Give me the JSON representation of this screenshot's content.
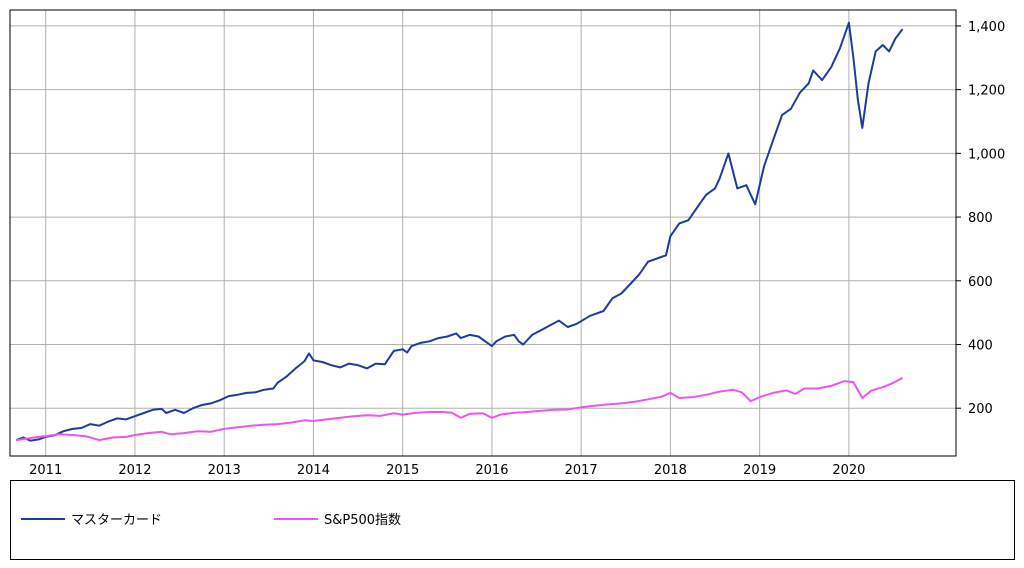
{
  "chart_data": {
    "type": "line",
    "title": "",
    "xlabel": "",
    "ylabel": "",
    "x_ticks": [
      "2011",
      "2012",
      "2013",
      "2014",
      "2015",
      "2016",
      "2017",
      "2018",
      "2019",
      "2020"
    ],
    "y_ticks": [
      "200",
      "400",
      "600",
      "800",
      "1,000",
      "1,200",
      "1,400"
    ],
    "xlim": [
      2010.6,
      2021.2
    ],
    "ylim": [
      50,
      1450
    ],
    "y_axis_side": "right",
    "grid": true,
    "legend_position": "bottom",
    "series": [
      {
        "name": "マスターカード",
        "color": "#1f3c9c",
        "points": [
          [
            2010.67,
            100
          ],
          [
            2010.75,
            108
          ],
          [
            2010.83,
            98
          ],
          [
            2010.92,
            102
          ],
          [
            2011.0,
            110
          ],
          [
            2011.1,
            115
          ],
          [
            2011.2,
            128
          ],
          [
            2011.3,
            135
          ],
          [
            2011.4,
            138
          ],
          [
            2011.5,
            150
          ],
          [
            2011.6,
            145
          ],
          [
            2011.7,
            158
          ],
          [
            2011.8,
            168
          ],
          [
            2011.9,
            165
          ],
          [
            2012.0,
            175
          ],
          [
            2012.1,
            185
          ],
          [
            2012.2,
            195
          ],
          [
            2012.3,
            198
          ],
          [
            2012.35,
            185
          ],
          [
            2012.45,
            195
          ],
          [
            2012.55,
            185
          ],
          [
            2012.65,
            200
          ],
          [
            2012.75,
            210
          ],
          [
            2012.85,
            215
          ],
          [
            2012.95,
            225
          ],
          [
            2013.05,
            238
          ],
          [
            2013.15,
            242
          ],
          [
            2013.25,
            248
          ],
          [
            2013.35,
            250
          ],
          [
            2013.45,
            258
          ],
          [
            2013.55,
            262
          ],
          [
            2013.6,
            280
          ],
          [
            2013.7,
            300
          ],
          [
            2013.8,
            325
          ],
          [
            2013.9,
            348
          ],
          [
            2013.95,
            372
          ],
          [
            2014.0,
            350
          ],
          [
            2014.1,
            345
          ],
          [
            2014.2,
            335
          ],
          [
            2014.3,
            328
          ],
          [
            2014.4,
            340
          ],
          [
            2014.5,
            335
          ],
          [
            2014.6,
            325
          ],
          [
            2014.7,
            340
          ],
          [
            2014.8,
            338
          ],
          [
            2014.9,
            380
          ],
          [
            2015.0,
            385
          ],
          [
            2015.05,
            375
          ],
          [
            2015.1,
            395
          ],
          [
            2015.2,
            405
          ],
          [
            2015.3,
            410
          ],
          [
            2015.4,
            420
          ],
          [
            2015.5,
            425
          ],
          [
            2015.6,
            435
          ],
          [
            2015.65,
            420
          ],
          [
            2015.75,
            430
          ],
          [
            2015.85,
            425
          ],
          [
            2015.95,
            405
          ],
          [
            2016.0,
            395
          ],
          [
            2016.05,
            410
          ],
          [
            2016.15,
            425
          ],
          [
            2016.25,
            430
          ],
          [
            2016.3,
            410
          ],
          [
            2016.35,
            400
          ],
          [
            2016.45,
            430
          ],
          [
            2016.55,
            445
          ],
          [
            2016.65,
            460
          ],
          [
            2016.75,
            475
          ],
          [
            2016.85,
            455
          ],
          [
            2016.95,
            465
          ],
          [
            2017.1,
            490
          ],
          [
            2017.25,
            505
          ],
          [
            2017.35,
            545
          ],
          [
            2017.45,
            560
          ],
          [
            2017.55,
            590
          ],
          [
            2017.65,
            620
          ],
          [
            2017.75,
            660
          ],
          [
            2017.85,
            670
          ],
          [
            2017.95,
            680
          ],
          [
            2018.0,
            740
          ],
          [
            2018.1,
            780
          ],
          [
            2018.2,
            790
          ],
          [
            2018.3,
            830
          ],
          [
            2018.4,
            870
          ],
          [
            2018.5,
            890
          ],
          [
            2018.55,
            920
          ],
          [
            2018.65,
            1000
          ],
          [
            2018.75,
            890
          ],
          [
            2018.85,
            900
          ],
          [
            2018.95,
            840
          ],
          [
            2019.05,
            960
          ],
          [
            2019.15,
            1040
          ],
          [
            2019.25,
            1120
          ],
          [
            2019.35,
            1140
          ],
          [
            2019.45,
            1190
          ],
          [
            2019.55,
            1220
          ],
          [
            2019.6,
            1260
          ],
          [
            2019.7,
            1230
          ],
          [
            2019.8,
            1270
          ],
          [
            2019.9,
            1330
          ],
          [
            2020.0,
            1410
          ],
          [
            2020.05,
            1300
          ],
          [
            2020.1,
            1170
          ],
          [
            2020.15,
            1080
          ],
          [
            2020.22,
            1220
          ],
          [
            2020.3,
            1320
          ],
          [
            2020.38,
            1340
          ],
          [
            2020.45,
            1320
          ],
          [
            2020.52,
            1360
          ],
          [
            2020.6,
            1390
          ]
        ]
      },
      {
        "name": "S&P500指数",
        "color": "#ee55ee",
        "points": [
          [
            2010.67,
            100
          ],
          [
            2010.8,
            105
          ],
          [
            2010.92,
            110
          ],
          [
            2011.0,
            112
          ],
          [
            2011.15,
            118
          ],
          [
            2011.3,
            116
          ],
          [
            2011.45,
            112
          ],
          [
            2011.6,
            100
          ],
          [
            2011.75,
            108
          ],
          [
            2011.9,
            110
          ],
          [
            2012.0,
            116
          ],
          [
            2012.15,
            122
          ],
          [
            2012.3,
            126
          ],
          [
            2012.4,
            118
          ],
          [
            2012.55,
            122
          ],
          [
            2012.7,
            128
          ],
          [
            2012.85,
            126
          ],
          [
            2013.0,
            135
          ],
          [
            2013.15,
            140
          ],
          [
            2013.3,
            145
          ],
          [
            2013.45,
            148
          ],
          [
            2013.6,
            150
          ],
          [
            2013.75,
            155
          ],
          [
            2013.9,
            162
          ],
          [
            2014.0,
            160
          ],
          [
            2014.15,
            165
          ],
          [
            2014.3,
            170
          ],
          [
            2014.45,
            175
          ],
          [
            2014.6,
            178
          ],
          [
            2014.75,
            176
          ],
          [
            2014.9,
            184
          ],
          [
            2015.0,
            180
          ],
          [
            2015.15,
            186
          ],
          [
            2015.3,
            188
          ],
          [
            2015.45,
            188
          ],
          [
            2015.55,
            186
          ],
          [
            2015.65,
            170
          ],
          [
            2015.75,
            182
          ],
          [
            2015.9,
            184
          ],
          [
            2016.0,
            170
          ],
          [
            2016.1,
            180
          ],
          [
            2016.25,
            186
          ],
          [
            2016.4,
            188
          ],
          [
            2016.55,
            192
          ],
          [
            2016.7,
            195
          ],
          [
            2016.85,
            196
          ],
          [
            2017.0,
            203
          ],
          [
            2017.15,
            208
          ],
          [
            2017.3,
            212
          ],
          [
            2017.45,
            215
          ],
          [
            2017.6,
            220
          ],
          [
            2017.75,
            228
          ],
          [
            2017.9,
            236
          ],
          [
            2018.0,
            248
          ],
          [
            2018.1,
            232
          ],
          [
            2018.25,
            235
          ],
          [
            2018.4,
            242
          ],
          [
            2018.55,
            252
          ],
          [
            2018.7,
            258
          ],
          [
            2018.8,
            250
          ],
          [
            2018.9,
            222
          ],
          [
            2019.0,
            235
          ],
          [
            2019.15,
            248
          ],
          [
            2019.3,
            256
          ],
          [
            2019.4,
            245
          ],
          [
            2019.5,
            262
          ],
          [
            2019.65,
            262
          ],
          [
            2019.8,
            270
          ],
          [
            2019.95,
            285
          ],
          [
            2020.05,
            282
          ],
          [
            2020.15,
            232
          ],
          [
            2020.25,
            255
          ],
          [
            2020.4,
            268
          ],
          [
            2020.5,
            280
          ],
          [
            2020.6,
            295
          ]
        ]
      }
    ]
  }
}
